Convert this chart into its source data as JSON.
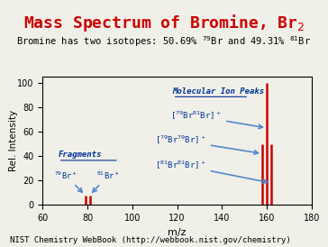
{
  "title": "Mass Spectrum of Bromine, Br$_2$",
  "subtitle": "Bromine has two isotopes: 50.69% $^{79}$Br and 49.31% $^{81}$Br",
  "xlabel": "m/z",
  "ylabel": "Rel. Intensity",
  "xlim": [
    60,
    180
  ],
  "ylim": [
    0,
    105
  ],
  "xticks": [
    60,
    80,
    100,
    120,
    140,
    160,
    180
  ],
  "yticks": [
    0,
    20,
    40,
    60,
    80,
    100
  ],
  "peaks": [
    {
      "mz": 79,
      "intensity": 8
    },
    {
      "mz": 81,
      "intensity": 8
    },
    {
      "mz": 158,
      "intensity": 50
    },
    {
      "mz": 160,
      "intensity": 100
    },
    {
      "mz": 162,
      "intensity": 50
    }
  ],
  "peak_color": "#cc0000",
  "title_color": "#cc0000",
  "label_color": "#003399",
  "bg_color": "#f0f0e8",
  "footer": "NIST Chemistry WebBook (http://webbook.nist.gov/chemistry)",
  "footer_fontsize": 6.5,
  "mol_ion_label": "Molecular Ion Peaks",
  "frag_label": "Fragments",
  "ann1": "[$^{79}$Br$^{81}$Br]$^+$",
  "ann2": "[$^{79}$Br$^{79}$Br]$^+$",
  "ann3": "[$^{81}$Br$^{81}$Br]$^+$",
  "frag1": "$^{79}$Br$^+$",
  "frag2": "$^{81}$Br$^+$"
}
